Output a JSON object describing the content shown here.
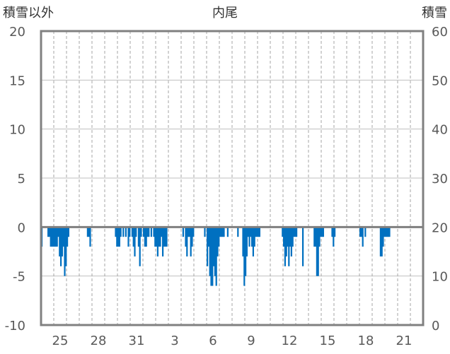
{
  "title": "内尾",
  "left_axis_label": "積雪以外",
  "right_axis_label": "積雪",
  "chart_data": {
    "type": "bar",
    "title": "内尾",
    "ylabel_left": "積雪以外",
    "ylabel_right": "積雪",
    "ylim_left": [
      -10,
      20
    ],
    "ylim_right": [
      0,
      60
    ],
    "yticks_left": [
      "20",
      "15",
      "10",
      "5",
      "0",
      "-5",
      "-10"
    ],
    "yticks_right": [
      "60",
      "50",
      "40",
      "30",
      "20",
      "10",
      "0"
    ],
    "xticks": [
      "25",
      "28",
      "31",
      "3",
      "6",
      "9",
      "12",
      "15",
      "18",
      "21"
    ],
    "x_range_days": [
      0,
      30
    ],
    "grid": "vertical dashed + horizontal solid",
    "bar_color": "#0070C0",
    "series": [
      {
        "values": [
          [
            0.0,
            -2
          ],
          [
            0.5,
            -1
          ],
          [
            0.6,
            -1
          ],
          [
            0.7,
            -2
          ],
          [
            0.8,
            -2
          ],
          [
            0.9,
            -2
          ],
          [
            1.0,
            -2
          ],
          [
            1.1,
            -2
          ],
          [
            1.2,
            -2
          ],
          [
            1.3,
            -1
          ],
          [
            1.4,
            -3
          ],
          [
            1.5,
            -4
          ],
          [
            1.6,
            -3
          ],
          [
            1.7,
            -2
          ],
          [
            1.8,
            -5
          ],
          [
            1.9,
            -4
          ],
          [
            2.0,
            -2
          ],
          [
            2.1,
            -1
          ],
          [
            3.6,
            -1
          ],
          [
            3.7,
            -1
          ],
          [
            3.8,
            -2
          ],
          [
            5.8,
            -1
          ],
          [
            5.9,
            -2
          ],
          [
            6.0,
            -2
          ],
          [
            6.1,
            -2
          ],
          [
            6.2,
            -1
          ],
          [
            6.4,
            -1
          ],
          [
            6.6,
            -1
          ],
          [
            6.8,
            -2
          ],
          [
            6.9,
            -1
          ],
          [
            7.1,
            -1
          ],
          [
            7.2,
            -2
          ],
          [
            7.3,
            -3
          ],
          [
            7.4,
            -1
          ],
          [
            7.6,
            -2
          ],
          [
            7.7,
            -4
          ],
          [
            7.8,
            -1
          ],
          [
            8.0,
            -1
          ],
          [
            8.1,
            -2
          ],
          [
            8.2,
            -2
          ],
          [
            8.3,
            -1
          ],
          [
            8.4,
            -1
          ],
          [
            8.6,
            -1
          ],
          [
            8.8,
            -1
          ],
          [
            8.9,
            -2
          ],
          [
            9.0,
            -2
          ],
          [
            9.1,
            -3
          ],
          [
            9.2,
            -2
          ],
          [
            9.3,
            -2
          ],
          [
            9.4,
            -1
          ],
          [
            9.5,
            -3
          ],
          [
            9.6,
            -2
          ],
          [
            9.7,
            -2
          ],
          [
            9.8,
            -2
          ],
          [
            11.1,
            -1
          ],
          [
            11.3,
            -2
          ],
          [
            11.4,
            -3
          ],
          [
            11.5,
            -1
          ],
          [
            11.6,
            -1
          ],
          [
            11.7,
            -3
          ],
          [
            11.8,
            -2
          ],
          [
            11.9,
            -1
          ],
          [
            12.8,
            -1
          ],
          [
            13.0,
            -4
          ],
          [
            13.1,
            -2
          ],
          [
            13.2,
            -5
          ],
          [
            13.3,
            -6
          ],
          [
            13.4,
            -6
          ],
          [
            13.5,
            -4
          ],
          [
            13.6,
            -5
          ],
          [
            13.7,
            -6
          ],
          [
            13.8,
            -3
          ],
          [
            13.9,
            -2
          ],
          [
            14.0,
            -1
          ],
          [
            14.1,
            -1
          ],
          [
            14.2,
            -1
          ],
          [
            14.3,
            -1
          ],
          [
            14.6,
            -1
          ],
          [
            15.4,
            -1
          ],
          [
            15.8,
            -3
          ],
          [
            15.9,
            -6
          ],
          [
            16.0,
            -5
          ],
          [
            16.1,
            -3
          ],
          [
            16.2,
            -1
          ],
          [
            16.3,
            -2
          ],
          [
            16.4,
            -1
          ],
          [
            16.5,
            -2
          ],
          [
            16.6,
            -3
          ],
          [
            16.7,
            -2
          ],
          [
            16.8,
            -1
          ],
          [
            16.9,
            -1
          ],
          [
            17.0,
            -1
          ],
          [
            17.1,
            -1
          ],
          [
            18.9,
            -1
          ],
          [
            19.0,
            -2
          ],
          [
            19.1,
            -4
          ],
          [
            19.2,
            -3
          ],
          [
            19.3,
            -2
          ],
          [
            19.4,
            -4
          ],
          [
            19.5,
            -2
          ],
          [
            19.6,
            -3
          ],
          [
            19.7,
            -2
          ],
          [
            19.8,
            -1
          ],
          [
            19.9,
            -1
          ],
          [
            20.0,
            -1
          ],
          [
            20.5,
            -4
          ],
          [
            21.4,
            -2
          ],
          [
            21.5,
            -2
          ],
          [
            21.6,
            -5
          ],
          [
            21.7,
            -5
          ],
          [
            21.8,
            -2
          ],
          [
            21.9,
            -1
          ],
          [
            22.0,
            -1
          ],
          [
            22.1,
            -1
          ],
          [
            22.8,
            -1
          ],
          [
            22.9,
            -2
          ],
          [
            23.0,
            -1
          ],
          [
            25.0,
            -1
          ],
          [
            25.1,
            -1
          ],
          [
            25.2,
            -2
          ],
          [
            25.4,
            -1
          ],
          [
            26.6,
            -3
          ],
          [
            26.7,
            -3
          ],
          [
            26.8,
            -2
          ],
          [
            26.9,
            -1
          ],
          [
            27.0,
            -1
          ],
          [
            27.1,
            -1
          ],
          [
            27.2,
            -1
          ],
          [
            27.3,
            -1
          ]
        ]
      }
    ]
  }
}
